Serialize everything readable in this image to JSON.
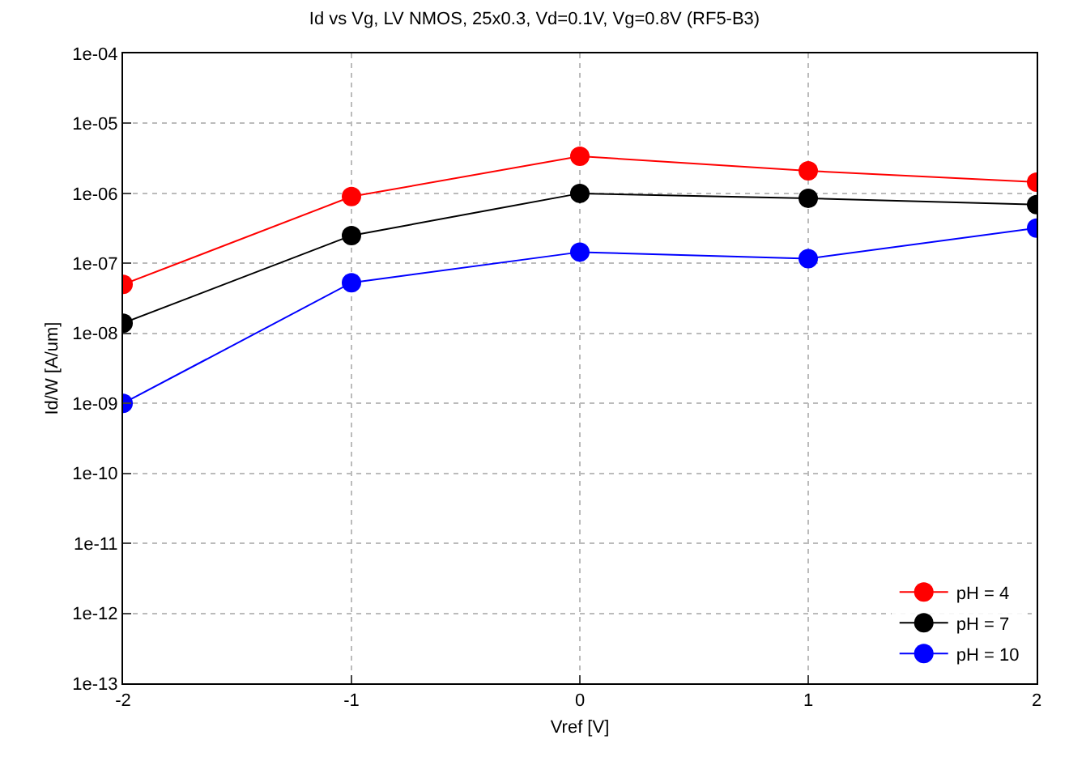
{
  "chart_data": {
    "type": "line",
    "title": "Id vs Vg, LV NMOS, 25x0.3, Vd=0.1V, Vg=0.8V (RF5-B3)",
    "xlabel": "Vref [V]",
    "ylabel": "Id/W [A/um]",
    "x": [
      -2,
      -1,
      0,
      1,
      2
    ],
    "series": [
      {
        "name": "pH = 4",
        "color": "#ff0000",
        "values": [
          5e-08,
          9e-07,
          3.4e-06,
          2.1e-06,
          1.45e-06
        ]
      },
      {
        "name": "pH = 7",
        "color": "#000000",
        "values": [
          1.4e-08,
          2.5e-07,
          1e-06,
          8.5e-07,
          6.9e-07
        ]
      },
      {
        "name": "pH = 10",
        "color": "#0000ff",
        "values": [
          1e-09,
          5.3e-08,
          1.45e-07,
          1.17e-07,
          3.2e-07
        ]
      }
    ],
    "xlim": [
      -2,
      2
    ],
    "xticks": [
      -2,
      -1,
      0,
      1,
      2
    ],
    "ylim": [
      1e-13,
      0.0001
    ],
    "yticks": [
      {
        "value": 1e-13,
        "label": "1e-13"
      },
      {
        "value": 1e-12,
        "label": "1e-12"
      },
      {
        "value": 1e-11,
        "label": "1e-11"
      },
      {
        "value": 1e-10,
        "label": "1e-10"
      },
      {
        "value": 1e-09,
        "label": "1e-09"
      },
      {
        "value": 1e-08,
        "label": "1e-08"
      },
      {
        "value": 1e-07,
        "label": "1e-07"
      },
      {
        "value": 1e-06,
        "label": "1e-06"
      },
      {
        "value": 1e-05,
        "label": "1e-05"
      },
      {
        "value": 0.0001,
        "label": "1e-04"
      }
    ],
    "log": "y",
    "grid": true,
    "legend": "bottom right",
    "marker": "circle",
    "line_style": "solid"
  }
}
